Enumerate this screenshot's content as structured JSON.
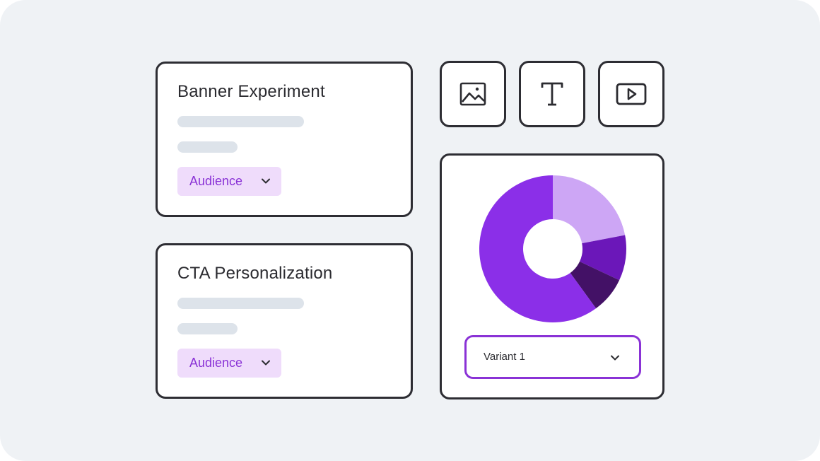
{
  "experiments": [
    {
      "title": "Banner Experiment",
      "audience_label": "Audience"
    },
    {
      "title": "CTA Personalization",
      "audience_label": "Audience"
    }
  ],
  "content_types": [
    {
      "icon": "image-icon"
    },
    {
      "icon": "text-icon"
    },
    {
      "icon": "video-icon"
    }
  ],
  "chart_data": {
    "type": "pie",
    "style": "donut",
    "slices": [
      {
        "value": 22,
        "color": "#cda6f5"
      },
      {
        "value": 10,
        "color": "#6b17b9"
      },
      {
        "value": 8,
        "color": "#431166"
      },
      {
        "value": 60,
        "color": "#8b2fe8"
      }
    ]
  },
  "variant_select": {
    "selected": "Variant 1"
  },
  "colors": {
    "accent": "#8a32d6",
    "chip_bg": "#efdcfb",
    "border": "#2d2d33",
    "skeleton": "#dde3ea",
    "background": "#eff2f5"
  }
}
